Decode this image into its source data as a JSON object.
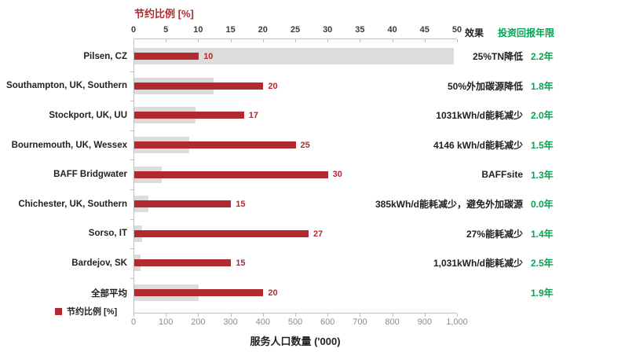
{
  "columns": {
    "effect_header": "效果",
    "payback_header": "投资回报年限"
  },
  "chart_data": {
    "type": "bar",
    "orientation": "horizontal",
    "title": "节约比例 [%]",
    "grid": false,
    "legend_position": "bottom-left",
    "legend": [
      {
        "label": "节约比例 [%]",
        "color": "#B02A30"
      }
    ],
    "colors": {
      "saving_bar": "#B02A30",
      "population_bar": "#DCDCDC",
      "payback_text": "#00A651",
      "axis_line": "#BFBFBF"
    },
    "top_axis": {
      "label": "节约比例 [%]",
      "min": 0,
      "max": 50,
      "ticks": [
        0,
        5,
        10,
        15,
        20,
        25,
        30,
        35,
        40,
        45,
        50
      ]
    },
    "bottom_axis": {
      "label": "服务人口数量 ('000)",
      "min": 0,
      "max": 1000,
      "ticks": [
        "0",
        "100",
        "200",
        "300",
        "400",
        "500",
        "600",
        "700",
        "800",
        "900",
        "1,000"
      ]
    },
    "series": [
      {
        "name": "节约比例 [%]",
        "axis": "top",
        "values": [
          10,
          20,
          17,
          25,
          30,
          15,
          27,
          15,
          20
        ]
      },
      {
        "name": "服务人口数量 ('000)",
        "axis": "bottom",
        "values": [
          990,
          245,
          190,
          170,
          85,
          45,
          25,
          20,
          200
        ]
      }
    ],
    "categories": [
      "Pilsen, CZ",
      "Southampton, UK, Southern",
      "Stockport, UK, UU",
      "Bournemouth, UK, Wessex",
      "BAFF Bridgwater",
      "Chichester, UK, Southern",
      "Sorso, IT",
      "Bardejov, SK",
      "全部平均"
    ],
    "rows": [
      {
        "site": "Pilsen, CZ",
        "saving_pct": 10,
        "population_k": 990,
        "effect": "25%TN降低",
        "payback": "2.2年"
      },
      {
        "site": "Southampton, UK, Southern",
        "saving_pct": 20,
        "population_k": 245,
        "effect": "50%外加碳源降低",
        "payback": "1.8年"
      },
      {
        "site": "Stockport, UK, UU",
        "saving_pct": 17,
        "population_k": 190,
        "effect": "1031kWh/d能耗减少",
        "payback": "2.0年"
      },
      {
        "site": "Bournemouth, UK, Wessex",
        "saving_pct": 25,
        "population_k": 170,
        "effect": "4146 kWh/d能耗减少",
        "payback": "1.5年"
      },
      {
        "site": "BAFF Bridgwater",
        "saving_pct": 30,
        "population_k": 85,
        "effect": "BAFFsite",
        "payback": "1.3年"
      },
      {
        "site": "Chichester, UK, Southern",
        "saving_pct": 15,
        "population_k": 45,
        "effect": "385kWh/d能耗减少，避免外加碳源",
        "payback": "0.0年"
      },
      {
        "site": "Sorso, IT",
        "saving_pct": 27,
        "population_k": 25,
        "effect": "27%能耗减少",
        "payback": "1.4年"
      },
      {
        "site": "Bardejov, SK",
        "saving_pct": 15,
        "population_k": 20,
        "effect": "1,031kWh/d能耗减少",
        "payback": "2.5年"
      },
      {
        "site": "全部平均",
        "saving_pct": 20,
        "population_k": 200,
        "effect": "",
        "payback": "1.9年"
      }
    ]
  }
}
